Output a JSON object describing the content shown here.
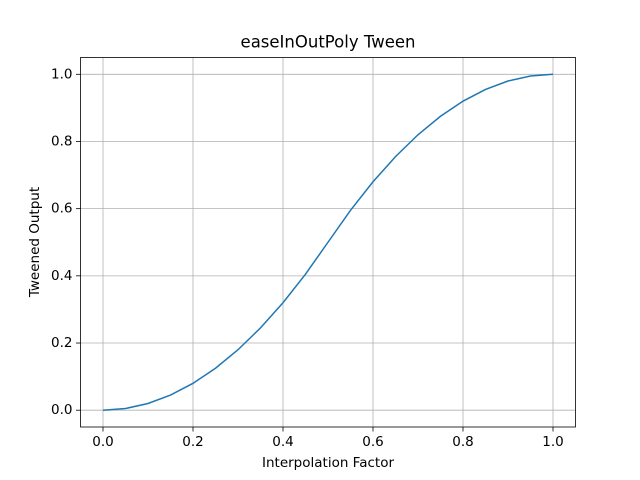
{
  "chart_data": {
    "type": "line",
    "title": "easeInOutPoly Tween",
    "x_label": "Interpolation Factor",
    "y_label": "Tweened Output",
    "x": [
      0,
      0.05,
      0.1,
      0.15,
      0.2,
      0.25,
      0.3,
      0.35,
      0.4,
      0.45,
      0.5,
      0.55,
      0.6,
      0.65,
      0.7,
      0.75,
      0.8,
      0.85,
      0.9,
      0.95,
      1
    ],
    "series": [
      {
        "name": "easeInOutPoly",
        "color": "#1f77b4",
        "values": [
          0,
          0.005,
          0.02,
          0.045,
          0.08,
          0.125,
          0.18,
          0.245,
          0.32,
          0.405,
          0.5,
          0.595,
          0.68,
          0.755,
          0.82,
          0.875,
          0.92,
          0.955,
          0.98,
          0.995,
          1
        ]
      }
    ],
    "xlim": [
      -0.05,
      1.05
    ],
    "ylim": [
      -0.05,
      1.05
    ],
    "xticks": [
      {
        "value": 0,
        "label": "0.0"
      },
      0.2,
      0.4,
      0.6,
      0.8,
      {
        "value": 1,
        "label": "1.0"
      }
    ],
    "yticks": [
      {
        "value": 0,
        "label": "0.0"
      },
      0.2,
      0.4,
      0.6,
      0.8,
      {
        "value": 1,
        "label": "1.0"
      }
    ],
    "grid": true
  }
}
